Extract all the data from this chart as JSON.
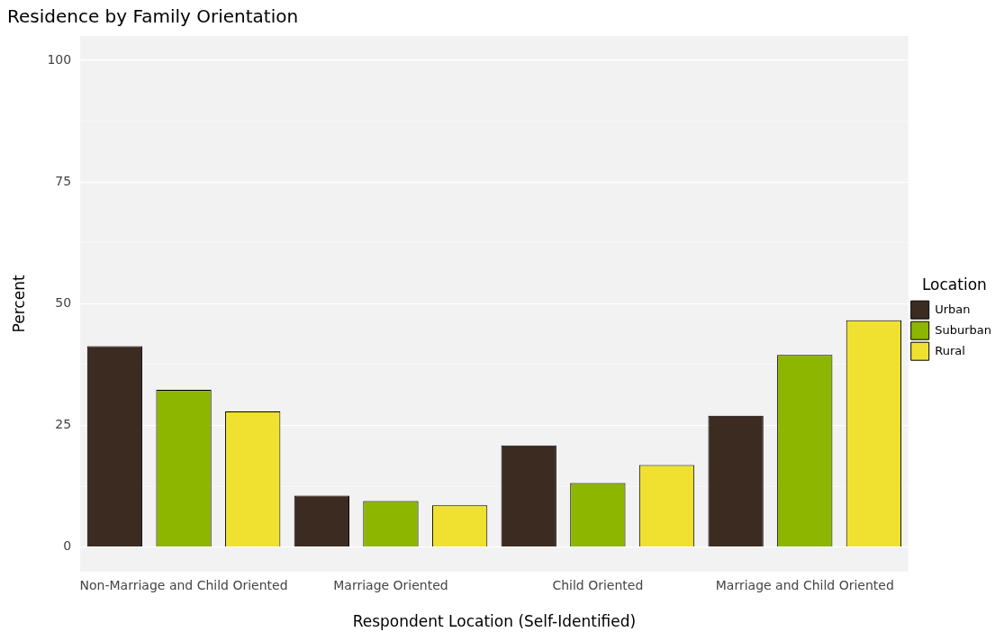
{
  "chart_data": {
    "type": "bar",
    "title": "Residence by Family Orientation",
    "xlabel": "Respondent Location (Self-Identified)",
    "ylabel": "Percent",
    "legend_title": "Location",
    "categories": [
      "Non-Marriage and Child Oriented",
      "Marriage Oriented",
      "Child Oriented",
      "Marriage and Child Oriented"
    ],
    "series": [
      {
        "name": "Urban",
        "color": "#3c2b21",
        "values": [
          41.3,
          10.6,
          20.9,
          27.0
        ]
      },
      {
        "name": "Suburban",
        "color": "#8db600",
        "values": [
          32.3,
          9.5,
          13.2,
          39.5
        ]
      },
      {
        "name": "Rural",
        "color": "#f0e130",
        "values": [
          27.9,
          8.6,
          16.9,
          46.6
        ]
      }
    ],
    "ylim": [
      -5,
      105
    ],
    "yticks": [
      0,
      {
        "value": 12.5,
        "label": null
      },
      25,
      {
        "value": 37.5,
        "label": null
      },
      50,
      {
        "value": 62.5,
        "label": null
      },
      75,
      {
        "value": 87.5,
        "label": null
      },
      100
    ],
    "grid": true,
    "legend": "right"
  }
}
